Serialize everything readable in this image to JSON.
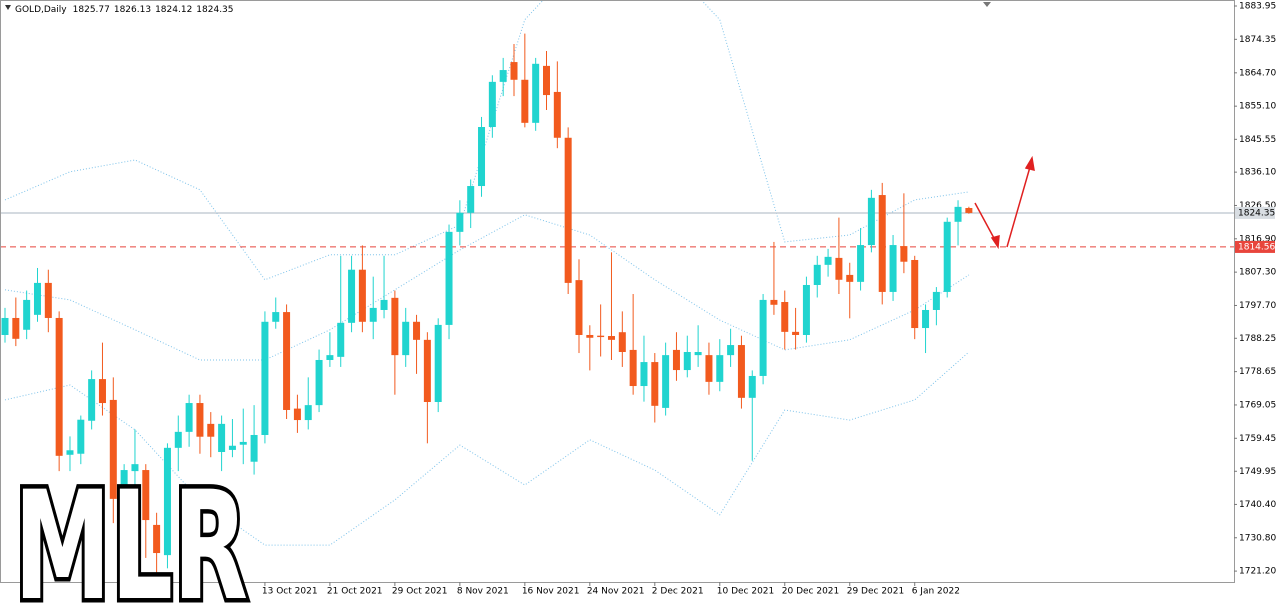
{
  "chart_data": {
    "type": "candlestick",
    "title": "GOLD,Daily",
    "watermark": "MLR",
    "categories": [
      null,
      null,
      null,
      null,
      null,
      null,
      null,
      null,
      null,
      null,
      null,
      null,
      null,
      null,
      null,
      null,
      null,
      null,
      null,
      null,
      null,
      null,
      null,
      null,
      "13 Oct 2021",
      null,
      null,
      null,
      null,
      null,
      "21 Oct 2021",
      null,
      null,
      null,
      null,
      null,
      "29 Oct 2021",
      null,
      null,
      null,
      null,
      null,
      "8 Nov 2021",
      null,
      null,
      null,
      null,
      null,
      "16 Nov 2021",
      null,
      null,
      null,
      null,
      null,
      "24 Nov 2021",
      null,
      null,
      null,
      null,
      null,
      "2 Dec 2021",
      null,
      null,
      null,
      null,
      null,
      "10 Dec 2021",
      null,
      null,
      null,
      null,
      null,
      "20 Dec 2021",
      null,
      null,
      null,
      null,
      null,
      "29 Dec 2021",
      null,
      null,
      null,
      null,
      null,
      "6 Jan 2022",
      null,
      null,
      null,
      null,
      null
    ],
    "open": [
      1789.2,
      1794.1,
      1790.7,
      1795.0,
      1804.2,
      1794.1,
      1754.7,
      1755,
      1764.5,
      1776.5,
      1770.5,
      1742,
      1750,
      1750.3,
      1734.5,
      1725.8,
      1756.7,
      1761.3,
      1769.6,
      1763.6,
      1755.5,
      1756.1,
      1757.6,
      1752.7,
      1760.4,
      1793,
      1795.8,
      1768,
      1764.7,
      1769,
      1782,
      1782.9,
      1792.7,
      1808,
      1793,
      1796.4,
      1799.9,
      1783.4,
      1793,
      1787.8,
      1769.9,
      1792.1,
      1818.9,
      1824.4,
      1832.1,
      1849.1,
      1862.1,
      1867.8,
      1862.7,
      1850.3,
      1866.7,
      1859.2,
      1846,
      1805,
      1789.2,
      1789,
      1788.9,
      1790,
      1784.9,
      1774.5,
      1781.4,
      1768.2,
      1784.9,
      1779.1,
      1783.4,
      1783.4,
      1775.7,
      1783.4,
      1786.3,
      1771.1,
      1777.4,
      1799.3,
      1798.7,
      1790.1,
      1789.2,
      1803.6,
      1809.4,
      1811.4,
      1806.5,
      1804.5,
      1815.1,
      1829.5,
      1801.6,
      1814.8,
      1810.8,
      1791.2,
      1796.4,
      1801.6,
      1821.8,
      1825.77
    ],
    "high": [
      1797,
      1800,
      1802,
      1808.5,
      1808,
      1796,
      1760,
      1766,
      1779,
      1787,
      1777,
      1752,
      1762,
      1752,
      1738,
      1758,
      1766,
      1772,
      1772,
      1767,
      1766,
      1765,
      1768,
      1769,
      1796,
      1800,
      1798,
      1772,
      1777,
      1785,
      1790,
      1812,
      1812,
      1815,
      1806,
      1812,
      1802,
      1797,
      1795,
      1790,
      1794,
      1821,
      1828,
      1834,
      1852,
      1864,
      1869,
      1873,
      1876,
      1869,
      1871,
      1868,
      1849,
      1811,
      1792,
      1798,
      1813,
      1796,
      1801,
      1789,
      1784,
      1787,
      1790,
      1789,
      1792,
      1787,
      1788,
      1791,
      1789,
      1779,
      1801,
      1816,
      1802,
      1797,
      1806,
      1812,
      1814,
      1823,
      1810,
      1820,
      1831,
      1833,
      1818,
      1830,
      1812,
      1798,
      1803,
      1823,
      1828,
      1826.13
    ],
    "low": [
      1787,
      1786,
      1788,
      1793,
      1790,
      1750,
      1750,
      1752,
      1762,
      1766,
      1735,
      1738,
      1746,
      1725,
      1720,
      1722,
      1750,
      1757,
      1755,
      1754,
      1750,
      1754,
      1752,
      1749,
      1758,
      1791,
      1765,
      1761,
      1762,
      1767,
      1780,
      1780,
      1790,
      1790,
      1788,
      1794,
      1772,
      1780,
      1778,
      1758,
      1767,
      1788,
      1815,
      1820,
      1829,
      1846,
      1858,
      1858,
      1849,
      1848,
      1854,
      1843,
      1801,
      1784,
      1779,
      1783,
      1782,
      1780,
      1772,
      1770,
      1764,
      1766,
      1776,
      1777,
      1780,
      1772,
      1773,
      1780,
      1768,
      1753,
      1775,
      1795,
      1785,
      1785,
      1787,
      1800,
      1806,
      1801,
      1794,
      1802,
      1813,
      1798,
      1799,
      1807,
      1788,
      1784,
      1792,
      1800,
      1815,
      1824.12
    ],
    "close": [
      1794.1,
      1788.1,
      1799.3,
      1804.2,
      1794.1,
      1754.4,
      1756,
      1764.8,
      1776.5,
      1769.6,
      1742,
      1750.3,
      1752,
      1735.9,
      1726.4,
      1756.7,
      1761.3,
      1769.6,
      1759.9,
      1759.9,
      1763.6,
      1757.3,
      1758.4,
      1760.4,
      1793,
      1795.8,
      1767.6,
      1764.7,
      1769,
      1782,
      1783.4,
      1792.7,
      1808,
      1793,
      1797,
      1799.3,
      1783.4,
      1793,
      1787.8,
      1769.9,
      1792.1,
      1818.9,
      1824.4,
      1832.1,
      1849.1,
      1862.1,
      1865.5,
      1862.7,
      1850.3,
      1867.3,
      1858.3,
      1846,
      1804.2,
      1789.2,
      1788.4,
      1788.6,
      1787.8,
      1784.3,
      1774.5,
      1781.4,
      1768.8,
      1783.4,
      1779.1,
      1784.3,
      1784.3,
      1775.7,
      1783.4,
      1786.3,
      1771.1,
      1777.4,
      1799.3,
      1797.9,
      1790.1,
      1789.2,
      1803.6,
      1809.4,
      1811.7,
      1805.1,
      1804.5,
      1815.1,
      1828.7,
      1801.6,
      1815.1,
      1810.3,
      1791.2,
      1796.4,
      1801.6,
      1821.8,
      1826.1,
      1824.35
    ],
    "up_color": "#20d4cf",
    "down_color": "#f25a1e",
    "overlay_x": [
      0,
      6,
      12,
      18,
      24,
      30,
      36,
      42,
      48,
      54,
      60,
      66,
      72,
      78,
      84,
      89
    ],
    "overlays": [
      {
        "color": "#7ec3ea",
        "values": [
          1828.1,
          1836.2,
          1839.6,
          1831.0,
          1805.1,
          1812.3,
          1812.3,
          1820.9,
          1880,
          1900,
          1900,
          1880,
          1816,
          1818.0,
          1828.1,
          1830.4
        ]
      },
      {
        "color": "#7ec3ea",
        "values": [
          1802.2,
          1799.3,
          1790.7,
          1782.0,
          1782.0,
          1790.7,
          1802.2,
          1813.7,
          1823.8,
          1818.0,
          1805.1,
          1793.5,
          1784.9,
          1787.8,
          1796.4,
          1806.5
        ]
      },
      {
        "color": "#7ec3ea",
        "values": [
          1770.5,
          1774.8,
          1761.9,
          1741.7,
          1728.7,
          1728.7,
          1741.7,
          1757.5,
          1746.0,
          1759.0,
          1750.3,
          1737.4,
          1767.6,
          1764.7,
          1770.5,
          1784.3
        ]
      }
    ],
    "lines": [
      {
        "value": 1824.35,
        "color": "#aab6c2",
        "label_color": "#d8dde2",
        "text_color": "#000000",
        "dashed": false
      },
      {
        "value": 1814.56,
        "color": "#e8453c",
        "label_color": "#e8453c",
        "text_color": "#ffffff",
        "dashed": true
      }
    ],
    "ylim": [
      1718.06,
      1885.1
    ],
    "yticks": [
      1883.95,
      1874.35,
      {
        "value": 1864.7,
        "label": "1864.70"
      },
      {
        "value": 1855.1,
        "label": "1855.10"
      },
      1845.55,
      {
        "value": 1836.1,
        "label": "1836.10"
      },
      {
        "value": 1826.5,
        "label": "1826.50"
      },
      {
        "value": 1816.9,
        "label": "1816.90"
      },
      {
        "value": 1807.3,
        "label": "1807.30"
      },
      {
        "value": 1797.7,
        "label": "1797.70"
      },
      1788.25,
      1778.65,
      1769.05,
      1759.45,
      1749.95,
      {
        "value": 1740.4,
        "label": "1740.40"
      },
      {
        "value": 1730.8,
        "label": "1730.80"
      },
      {
        "value": 1721.2,
        "label": "1721.20"
      }
    ]
  }
}
